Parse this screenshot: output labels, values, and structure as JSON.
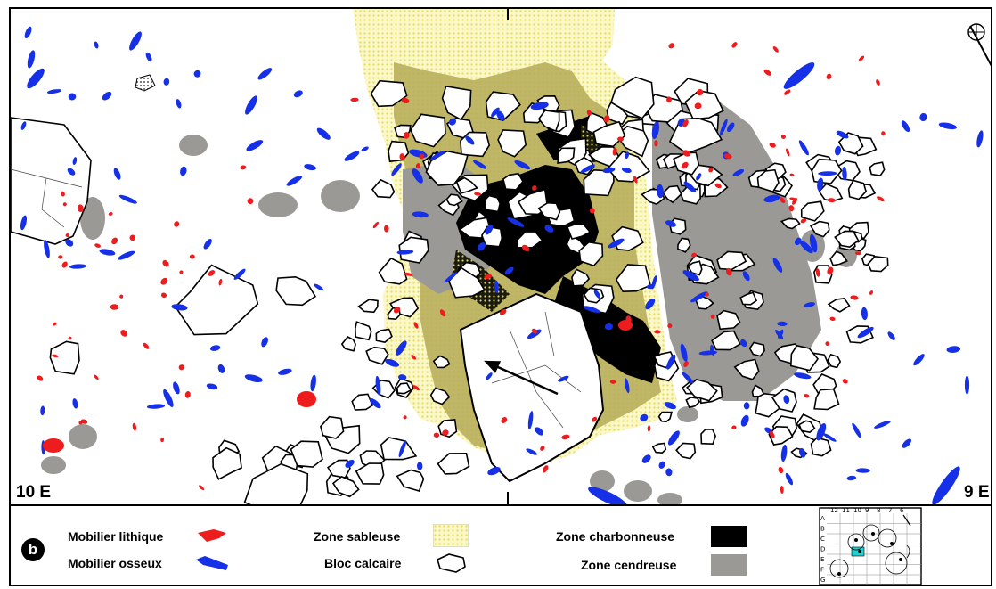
{
  "map": {
    "sector_left": "10 E",
    "sector_right": "9 E",
    "north_icon": "north-arrow-icon",
    "colors": {
      "lithic": "#ee1c1c",
      "bone": "#1530e6",
      "sand": "#f2f0a4",
      "charcoal": "#000000",
      "ash": "#9a9894",
      "olive": "#b3ab55",
      "limestone_fill": "#ffffff",
      "limestone_stroke": "#000000"
    }
  },
  "legend": {
    "panel_letter": "b",
    "items": [
      {
        "label": "Mobilier lithique",
        "swatch": "lithic"
      },
      {
        "label": "Mobilier osseux",
        "swatch": "bone"
      },
      {
        "label": "Zone sableuse",
        "swatch": "sand"
      },
      {
        "label": "Bloc calcaire",
        "swatch": "limestone"
      },
      {
        "label": "Zone charbonneuse",
        "swatch": "charcoal"
      },
      {
        "label": "Zone cendreuse",
        "swatch": "ash"
      }
    ]
  },
  "key_map": {
    "columns": [
      "12",
      "11",
      "10",
      "9",
      "8",
      "7",
      "6"
    ],
    "rows": [
      "A",
      "B",
      "C",
      "D",
      "E",
      "F",
      "G"
    ],
    "highlight_color": "#1fd0d0"
  }
}
